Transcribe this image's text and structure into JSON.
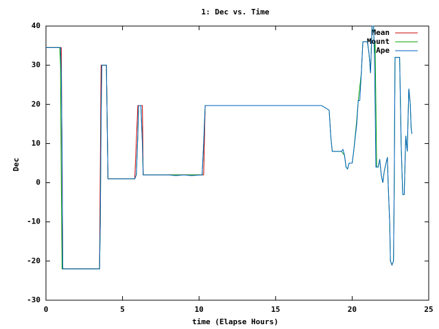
{
  "chart_data": {
    "type": "line",
    "title": "1: Dec vs. Time",
    "x_label": "time (Elapse Hours)",
    "y_label": "Dec",
    "xlim": [
      0,
      25
    ],
    "xticks": [
      0,
      5,
      10,
      15,
      20,
      25
    ],
    "ylim": [
      -30,
      40
    ],
    "yticks": [
      -30,
      -20,
      -10,
      0,
      10,
      20,
      30,
      40
    ],
    "legend": "top-right",
    "series": [
      {
        "name": "Mean",
        "color": "#cc0000",
        "x": [
          0,
          1,
          1.1,
          3.5,
          3.6,
          3.95,
          4.05,
          5.8,
          6,
          6.3,
          6.35,
          10.3,
          10.4,
          15.3
        ],
        "values": [
          34.5,
          34.5,
          -22,
          -22,
          30,
          30,
          1,
          1,
          19.7,
          19.7,
          2,
          2,
          19.7,
          19.7
        ]
      },
      {
        "name": "Mount",
        "color": "#00a000",
        "x": [
          0,
          0.9,
          0.95,
          1.0,
          1.05,
          3.5,
          3.55,
          3.6,
          3.65,
          3.95,
          4.0,
          4.05,
          5.8,
          5.9,
          6.0,
          6.05,
          6.2,
          6.3,
          6.35,
          10.2,
          10.3,
          10.4,
          18,
          18.3,
          18.5,
          18.6,
          18.7,
          19.3,
          19.5,
          19.6,
          19.7,
          19.8,
          20,
          20.1,
          20.3,
          20.4,
          20.6,
          20.7,
          21.0,
          21.1,
          21.2,
          21.3,
          21.4,
          21.45,
          21.5,
          21.55,
          21.6,
          21.7,
          21.8,
          21.9,
          22.0,
          22.1,
          22.3,
          22.35,
          22.45,
          22.5,
          22.6,
          22.7,
          22.75,
          22.8,
          23.1,
          23.2,
          23.3,
          23.4,
          23.5,
          23.6,
          23.7,
          23.8,
          23.85,
          23.9
        ],
        "values": [
          34.5,
          34.5,
          30,
          0,
          -22,
          -22,
          -10,
          16,
          30,
          30,
          15,
          1,
          1,
          2,
          12,
          19.7,
          19.7,
          10,
          2,
          2,
          10,
          19.7,
          19.7,
          19,
          18.5,
          12,
          8,
          8,
          7,
          4,
          3.5,
          5,
          5,
          8,
          16,
          21,
          28,
          36,
          36,
          33,
          28,
          40,
          40,
          33,
          36,
          20,
          4,
          4,
          6,
          2,
          0,
          3,
          6.5,
          0,
          -10,
          -20,
          -21,
          -20,
          0,
          32,
          32,
          10,
          -3,
          -3,
          12,
          8,
          24,
          20,
          14,
          12.5
        ]
      },
      {
        "name": "Ape",
        "color": "#0060c0",
        "x": [
          0,
          0.95,
          1.0,
          1.05,
          1.1,
          3.5,
          3.55,
          3.6,
          3.65,
          3.95,
          4.0,
          4.05,
          5.8,
          5.9,
          6.0,
          6.05,
          6.2,
          6.3,
          6.35,
          7,
          8,
          8.5,
          9,
          9.5,
          10.2,
          10.3,
          10.4,
          15.3,
          18,
          18.3,
          18.5,
          18.6,
          18.7,
          19.3,
          19.4,
          19.5,
          19.6,
          19.7,
          19.8,
          20,
          20.1,
          20.3,
          20.4,
          20.5,
          20.6,
          20.7,
          21.0,
          21.1,
          21.2,
          21.3,
          21.4,
          21.45,
          21.5,
          21.55,
          21.7,
          21.8,
          21.9,
          22.0,
          22.1,
          22.3,
          22.35,
          22.45,
          22.5,
          22.6,
          22.7,
          22.75,
          22.8,
          23.1,
          23.2,
          23.3,
          23.4,
          23.5,
          23.6,
          23.7,
          23.8,
          23.85,
          23.9
        ],
        "values": [
          34.5,
          34.5,
          28,
          10,
          -22,
          -22,
          -10,
          16,
          30,
          30,
          15,
          1,
          1,
          2,
          12,
          19.7,
          19.7,
          10,
          2,
          2,
          2,
          1.8,
          2,
          1.8,
          2,
          10,
          19.7,
          19.7,
          19.7,
          19,
          18.5,
          12,
          8,
          8,
          8.5,
          7,
          4,
          3.5,
          5,
          5,
          8,
          15,
          21,
          21,
          28,
          36,
          36,
          33,
          28,
          40,
          40,
          33,
          20,
          4,
          4,
          6,
          2,
          0,
          3,
          6.5,
          0,
          -10,
          -20,
          -21,
          -20,
          0,
          32,
          32,
          10,
          -3,
          -3,
          12,
          8,
          24,
          20,
          14,
          12.5
        ]
      }
    ]
  }
}
